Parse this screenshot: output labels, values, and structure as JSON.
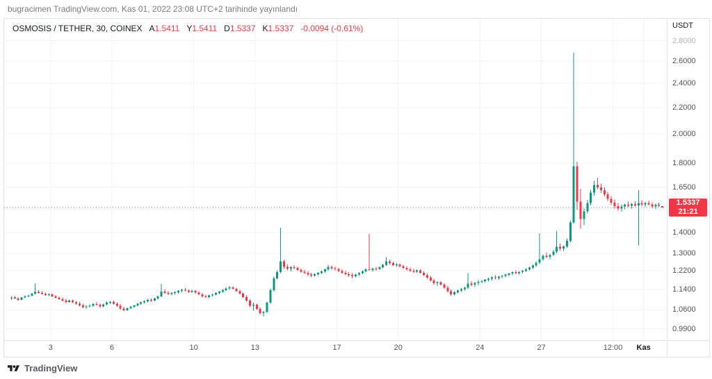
{
  "page": {
    "attribution": "bugracimen TradingView.com, Kas 01, 2022 23:08 UTC+2 tarihinde yayınlandı",
    "footer_brand": "TradingView"
  },
  "legend": {
    "symbol": "OSMOSIS / TETHER, 30, COINEX",
    "ohlc": [
      {
        "label": "A",
        "value": "1.5411"
      },
      {
        "label": "Y",
        "value": "1.5411"
      },
      {
        "label": "D",
        "value": "1.5337"
      },
      {
        "label": "K",
        "value": "1.5337"
      }
    ],
    "change": "-0.0094 (-0.61%)"
  },
  "price_axis": {
    "currency": "USDT",
    "last_price": "1.5337",
    "countdown": "21:21"
  },
  "colors": {
    "up": "#089981",
    "down": "#f23645",
    "badge_bg": "#f23645",
    "grid": "#f2f3f7",
    "price_line": "#787b86"
  },
  "chart_data": {
    "type": "candlestick",
    "title": "OSMOSIS / TETHER",
    "interval": "30",
    "exchange": "COINEX",
    "scale": "log",
    "ylim": [
      0.95,
      3.03
    ],
    "xlim_days": [
      0.73,
      33.1
    ],
    "start_day": 1,
    "bars_per_day": 6,
    "last_price": 1.5337,
    "y_ticks": [
      {
        "v": 2.8,
        "muted": true
      },
      {
        "v": 2.6
      },
      {
        "v": 2.4
      },
      {
        "v": 2.2
      },
      {
        "v": 2.0
      },
      {
        "v": 1.8
      },
      {
        "v": 1.65
      },
      {
        "v": 1.4
      },
      {
        "v": 1.3
      },
      {
        "v": 1.22
      },
      {
        "v": 1.14
      },
      {
        "v": 1.06
      },
      {
        "v": 0.99
      }
    ],
    "x_ticks": [
      {
        "text": "3",
        "day": 3
      },
      {
        "text": "6",
        "day": 6
      },
      {
        "text": "10",
        "day": 10
      },
      {
        "text": "13",
        "day": 13
      },
      {
        "text": "17",
        "day": 17
      },
      {
        "text": "20",
        "day": 20
      },
      {
        "text": "24",
        "day": 24
      },
      {
        "text": "27",
        "day": 27
      },
      {
        "text": "12:00",
        "day": 30.5
      },
      {
        "text": "Kas",
        "day": 32,
        "bold": true
      }
    ],
    "candles": [
      [
        1.105,
        1.112,
        1.098,
        1.108
      ],
      [
        1.108,
        1.113,
        1.103,
        1.104
      ],
      [
        1.104,
        1.109,
        1.095,
        1.099
      ],
      [
        1.099,
        1.11,
        1.097,
        1.108
      ],
      [
        1.108,
        1.117,
        1.105,
        1.113
      ],
      [
        1.113,
        1.119,
        1.109,
        1.115
      ],
      [
        1.115,
        1.126,
        1.112,
        1.123
      ],
      [
        1.123,
        1.165,
        1.12,
        1.131
      ],
      [
        1.131,
        1.138,
        1.124,
        1.127
      ],
      [
        1.127,
        1.133,
        1.119,
        1.122
      ],
      [
        1.122,
        1.128,
        1.115,
        1.118
      ],
      [
        1.118,
        1.125,
        1.114,
        1.121
      ],
      [
        1.121,
        1.125,
        1.11,
        1.113
      ],
      [
        1.113,
        1.118,
        1.104,
        1.107
      ],
      [
        1.107,
        1.112,
        1.098,
        1.101
      ],
      [
        1.101,
        1.108,
        1.092,
        1.096
      ],
      [
        1.096,
        1.103,
        1.085,
        1.09
      ],
      [
        1.09,
        1.1,
        1.087,
        1.096
      ],
      [
        1.096,
        1.1,
        1.086,
        1.089
      ],
      [
        1.089,
        1.094,
        1.079,
        1.083
      ],
      [
        1.083,
        1.09,
        1.073,
        1.077
      ],
      [
        1.077,
        1.084,
        1.066,
        1.07
      ],
      [
        1.07,
        1.078,
        1.063,
        1.073
      ],
      [
        1.073,
        1.081,
        1.069,
        1.076
      ],
      [
        1.076,
        1.086,
        1.071,
        1.082
      ],
      [
        1.082,
        1.091,
        1.076,
        1.079
      ],
      [
        1.079,
        1.085,
        1.068,
        1.073
      ],
      [
        1.073,
        1.084,
        1.07,
        1.081
      ],
      [
        1.081,
        1.093,
        1.077,
        1.088
      ],
      [
        1.088,
        1.095,
        1.082,
        1.091
      ],
      [
        1.091,
        1.096,
        1.08,
        1.084
      ],
      [
        1.084,
        1.089,
        1.071,
        1.075
      ],
      [
        1.075,
        1.082,
        1.06,
        1.065
      ],
      [
        1.065,
        1.072,
        1.054,
        1.058
      ],
      [
        1.058,
        1.069,
        1.055,
        1.066
      ],
      [
        1.066,
        1.075,
        1.062,
        1.071
      ],
      [
        1.071,
        1.08,
        1.067,
        1.077
      ],
      [
        1.077,
        1.086,
        1.073,
        1.083
      ],
      [
        1.083,
        1.092,
        1.079,
        1.089
      ],
      [
        1.089,
        1.097,
        1.084,
        1.093
      ],
      [
        1.093,
        1.103,
        1.088,
        1.098
      ],
      [
        1.098,
        1.104,
        1.091,
        1.096
      ],
      [
        1.096,
        1.107,
        1.093,
        1.104
      ],
      [
        1.104,
        1.116,
        1.1,
        1.113
      ],
      [
        1.113,
        1.163,
        1.11,
        1.132
      ],
      [
        1.132,
        1.14,
        1.122,
        1.127
      ],
      [
        1.127,
        1.134,
        1.118,
        1.122
      ],
      [
        1.122,
        1.13,
        1.117,
        1.126
      ],
      [
        1.126,
        1.133,
        1.119,
        1.129
      ],
      [
        1.129,
        1.138,
        1.124,
        1.135
      ],
      [
        1.135,
        1.144,
        1.129,
        1.139
      ],
      [
        1.139,
        1.147,
        1.132,
        1.136
      ],
      [
        1.136,
        1.141,
        1.126,
        1.131
      ],
      [
        1.131,
        1.139,
        1.127,
        1.135
      ],
      [
        1.135,
        1.139,
        1.124,
        1.128
      ],
      [
        1.128,
        1.133,
        1.117,
        1.121
      ],
      [
        1.121,
        1.127,
        1.108,
        1.113
      ],
      [
        1.113,
        1.12,
        1.105,
        1.11
      ],
      [
        1.11,
        1.119,
        1.106,
        1.116
      ],
      [
        1.116,
        1.124,
        1.112,
        1.12
      ],
      [
        1.12,
        1.129,
        1.116,
        1.126
      ],
      [
        1.126,
        1.135,
        1.121,
        1.132
      ],
      [
        1.132,
        1.142,
        1.127,
        1.138
      ],
      [
        1.138,
        1.149,
        1.133,
        1.145
      ],
      [
        1.145,
        1.155,
        1.139,
        1.149
      ],
      [
        1.149,
        1.153,
        1.14,
        1.144
      ],
      [
        1.144,
        1.148,
        1.13,
        1.134
      ],
      [
        1.134,
        1.139,
        1.119,
        1.123
      ],
      [
        1.123,
        1.128,
        1.106,
        1.11
      ],
      [
        1.11,
        1.116,
        1.092,
        1.096
      ],
      [
        1.096,
        1.102,
        1.07,
        1.076
      ],
      [
        1.076,
        1.088,
        1.057,
        1.079
      ],
      [
        1.079,
        1.083,
        1.06,
        1.064
      ],
      [
        1.064,
        1.07,
        1.042,
        1.048
      ],
      [
        1.048,
        1.056,
        1.035,
        1.052
      ],
      [
        1.052,
        1.092,
        1.049,
        1.088
      ],
      [
        1.088,
        1.145,
        1.084,
        1.138
      ],
      [
        1.138,
        1.195,
        1.132,
        1.188
      ],
      [
        1.188,
        1.222,
        1.183,
        1.215
      ],
      [
        1.215,
        1.425,
        1.21,
        1.262
      ],
      [
        1.262,
        1.27,
        1.228,
        1.238
      ],
      [
        1.238,
        1.248,
        1.222,
        1.23
      ],
      [
        1.23,
        1.241,
        1.218,
        1.236
      ],
      [
        1.236,
        1.245,
        1.226,
        1.233
      ],
      [
        1.233,
        1.239,
        1.22,
        1.224
      ],
      [
        1.224,
        1.231,
        1.211,
        1.216
      ],
      [
        1.216,
        1.225,
        1.205,
        1.211
      ],
      [
        1.211,
        1.219,
        1.198,
        1.203
      ],
      [
        1.203,
        1.212,
        1.192,
        1.199
      ],
      [
        1.199,
        1.209,
        1.194,
        1.205
      ],
      [
        1.205,
        1.214,
        1.199,
        1.211
      ],
      [
        1.211,
        1.222,
        1.206,
        1.218
      ],
      [
        1.218,
        1.23,
        1.212,
        1.226
      ],
      [
        1.226,
        1.247,
        1.22,
        1.238
      ],
      [
        1.238,
        1.244,
        1.225,
        1.231
      ],
      [
        1.231,
        1.239,
        1.222,
        1.228
      ],
      [
        1.228,
        1.233,
        1.215,
        1.219
      ],
      [
        1.219,
        1.226,
        1.207,
        1.212
      ],
      [
        1.212,
        1.22,
        1.2,
        1.206
      ],
      [
        1.206,
        1.215,
        1.195,
        1.201
      ],
      [
        1.201,
        1.21,
        1.188,
        1.196
      ],
      [
        1.196,
        1.207,
        1.191,
        1.203
      ],
      [
        1.203,
        1.214,
        1.198,
        1.21
      ],
      [
        1.21,
        1.222,
        1.205,
        1.218
      ],
      [
        1.218,
        1.231,
        1.213,
        1.227
      ],
      [
        1.227,
        1.393,
        1.22,
        1.224
      ],
      [
        1.224,
        1.235,
        1.216,
        1.23
      ],
      [
        1.23,
        1.238,
        1.221,
        1.228
      ],
      [
        1.228,
        1.24,
        1.223,
        1.236
      ],
      [
        1.236,
        1.252,
        1.231,
        1.247
      ],
      [
        1.247,
        1.282,
        1.242,
        1.262
      ],
      [
        1.262,
        1.27,
        1.248,
        1.254
      ],
      [
        1.254,
        1.261,
        1.241,
        1.246
      ],
      [
        1.246,
        1.254,
        1.238,
        1.248
      ],
      [
        1.248,
        1.253,
        1.235,
        1.24
      ],
      [
        1.24,
        1.247,
        1.228,
        1.233
      ],
      [
        1.233,
        1.241,
        1.221,
        1.227
      ],
      [
        1.227,
        1.235,
        1.214,
        1.22
      ],
      [
        1.22,
        1.229,
        1.21,
        1.216
      ],
      [
        1.216,
        1.226,
        1.211,
        1.222
      ],
      [
        1.222,
        1.226,
        1.208,
        1.212
      ],
      [
        1.212,
        1.218,
        1.197,
        1.201
      ],
      [
        1.201,
        1.208,
        1.186,
        1.19
      ],
      [
        1.19,
        1.197,
        1.174,
        1.179
      ],
      [
        1.179,
        1.186,
        1.16,
        1.166
      ],
      [
        1.166,
        1.176,
        1.155,
        1.171
      ],
      [
        1.171,
        1.176,
        1.157,
        1.161
      ],
      [
        1.161,
        1.167,
        1.144,
        1.148
      ],
      [
        1.148,
        1.155,
        1.128,
        1.133
      ],
      [
        1.133,
        1.14,
        1.115,
        1.121
      ],
      [
        1.121,
        1.133,
        1.117,
        1.129
      ],
      [
        1.129,
        1.14,
        1.124,
        1.136
      ],
      [
        1.136,
        1.146,
        1.131,
        1.142
      ],
      [
        1.142,
        1.152,
        1.137,
        1.148
      ],
      [
        1.148,
        1.21,
        1.142,
        1.165
      ],
      [
        1.165,
        1.176,
        1.154,
        1.16
      ],
      [
        1.16,
        1.172,
        1.15,
        1.168
      ],
      [
        1.168,
        1.18,
        1.158,
        1.172
      ],
      [
        1.172,
        1.18,
        1.166,
        1.176
      ],
      [
        1.176,
        1.185,
        1.17,
        1.181
      ],
      [
        1.181,
        1.19,
        1.174,
        1.186
      ],
      [
        1.186,
        1.196,
        1.179,
        1.191
      ],
      [
        1.191,
        1.2,
        1.183,
        1.188
      ],
      [
        1.188,
        1.197,
        1.182,
        1.194
      ],
      [
        1.194,
        1.202,
        1.188,
        1.198
      ],
      [
        1.198,
        1.207,
        1.192,
        1.203
      ],
      [
        1.203,
        1.212,
        1.196,
        1.208
      ],
      [
        1.208,
        1.218,
        1.201,
        1.214
      ],
      [
        1.214,
        1.222,
        1.206,
        1.21
      ],
      [
        1.21,
        1.219,
        1.204,
        1.215
      ],
      [
        1.215,
        1.224,
        1.209,
        1.22
      ],
      [
        1.22,
        1.231,
        1.214,
        1.227
      ],
      [
        1.227,
        1.239,
        1.221,
        1.234
      ],
      [
        1.234,
        1.249,
        1.228,
        1.243
      ],
      [
        1.243,
        1.262,
        1.237,
        1.256
      ],
      [
        1.256,
        1.398,
        1.25,
        1.272
      ],
      [
        1.272,
        1.295,
        1.266,
        1.288
      ],
      [
        1.288,
        1.302,
        1.276,
        1.283
      ],
      [
        1.283,
        1.297,
        1.272,
        1.292
      ],
      [
        1.292,
        1.315,
        1.286,
        1.308
      ],
      [
        1.308,
        1.408,
        1.3,
        1.33
      ],
      [
        1.33,
        1.345,
        1.312,
        1.322
      ],
      [
        1.322,
        1.338,
        1.31,
        1.332
      ],
      [
        1.332,
        1.372,
        1.325,
        1.36
      ],
      [
        1.36,
        1.462,
        1.352,
        1.452
      ],
      [
        1.452,
        2.68,
        1.446,
        1.78
      ],
      [
        1.78,
        1.808,
        1.52,
        1.565
      ],
      [
        1.565,
        1.64,
        1.42,
        1.47
      ],
      [
        1.47,
        1.53,
        1.438,
        1.512
      ],
      [
        1.512,
        1.575,
        1.5,
        1.558
      ],
      [
        1.558,
        1.635,
        1.545,
        1.618
      ],
      [
        1.618,
        1.688,
        1.6,
        1.662
      ],
      [
        1.662,
        1.708,
        1.638,
        1.648
      ],
      [
        1.648,
        1.672,
        1.615,
        1.632
      ],
      [
        1.632,
        1.648,
        1.595,
        1.608
      ],
      [
        1.608,
        1.622,
        1.57,
        1.582
      ],
      [
        1.582,
        1.598,
        1.548,
        1.56
      ],
      [
        1.56,
        1.578,
        1.528,
        1.54
      ],
      [
        1.54,
        1.558,
        1.515,
        1.528
      ],
      [
        1.528,
        1.55,
        1.51,
        1.538
      ],
      [
        1.538,
        1.555,
        1.524,
        1.548
      ],
      [
        1.548,
        1.565,
        1.534,
        1.542
      ],
      [
        1.542,
        1.558,
        1.528,
        1.552
      ],
      [
        1.552,
        1.568,
        1.538,
        1.545
      ],
      [
        1.545,
        1.632,
        1.338,
        1.558
      ],
      [
        1.558,
        1.574,
        1.54,
        1.55
      ],
      [
        1.55,
        1.566,
        1.536,
        1.558
      ],
      [
        1.558,
        1.572,
        1.544,
        1.55
      ],
      [
        1.55,
        1.562,
        1.53,
        1.538
      ],
      [
        1.538,
        1.556,
        1.526,
        1.548
      ],
      [
        1.548,
        1.56,
        1.536,
        1.5431
      ],
      [
        1.5411,
        1.5411,
        1.5337,
        1.5337
      ]
    ]
  }
}
